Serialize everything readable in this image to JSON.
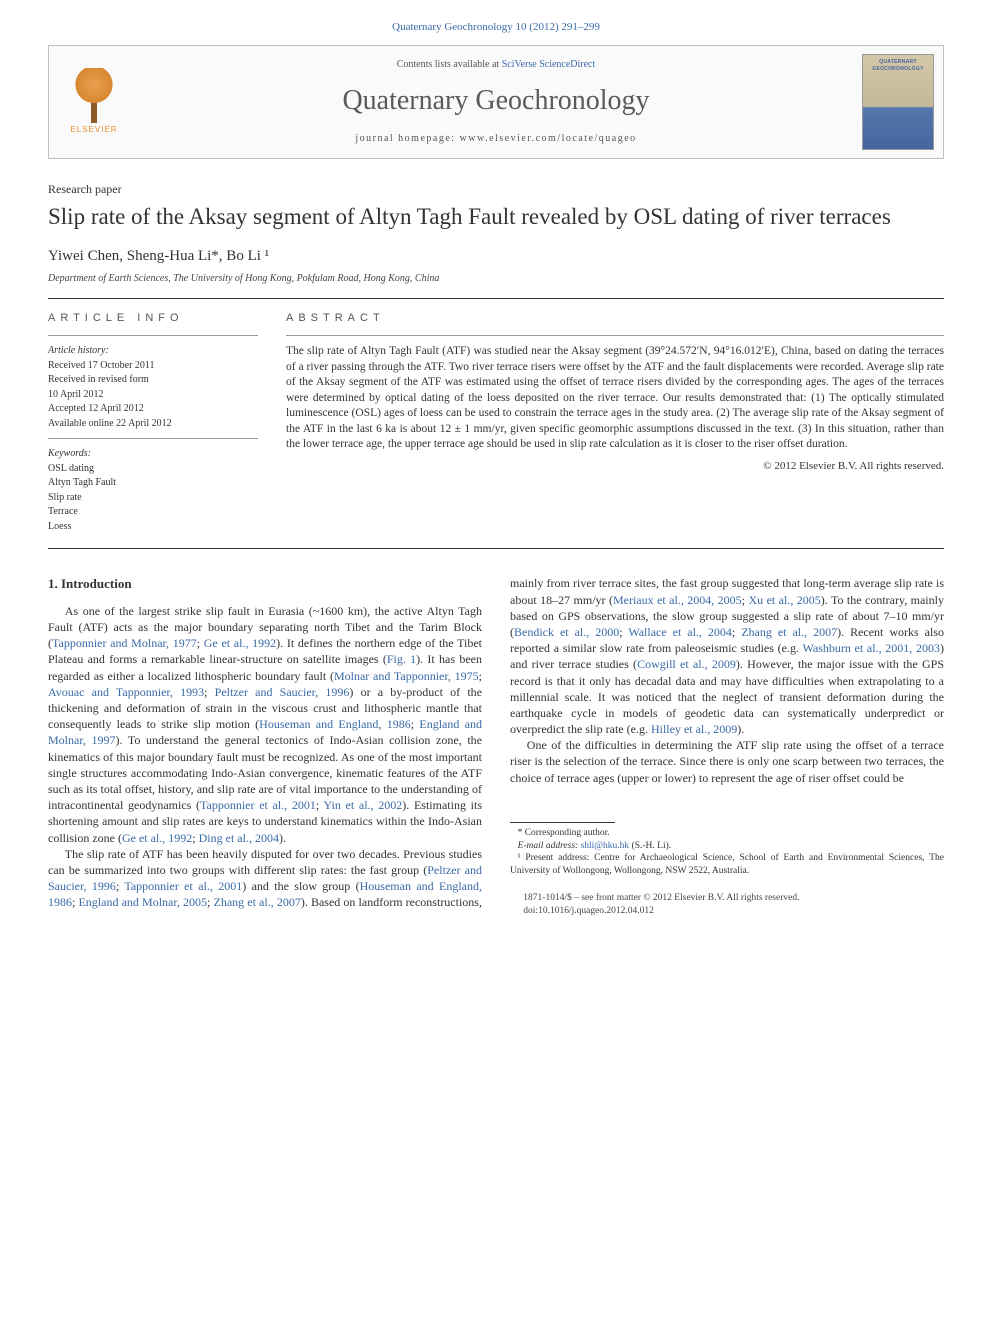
{
  "journal_ref": "Quaternary Geochronology 10 (2012) 291–299",
  "header": {
    "contents_prefix": "Contents lists available at ",
    "contents_link": "SciVerse ScienceDirect",
    "journal_name": "Quaternary Geochronology",
    "homepage_prefix": "journal homepage: ",
    "homepage_url": "www.elsevier.com/locate/quageo",
    "publisher_name": "ELSEVIER"
  },
  "paper_type": "Research paper",
  "title": "Slip rate of the Aksay segment of Altyn Tagh Fault revealed by OSL dating of river terraces",
  "authors": "Yiwei Chen, Sheng-Hua Li*, Bo Li ¹",
  "affiliation": "Department of Earth Sciences, The University of Hong Kong, Pokfulam Road, Hong Kong, China",
  "article_info": {
    "heading": "ARTICLE INFO",
    "history_label": "Article history:",
    "received": "Received 17 October 2011",
    "revised_1": "Received in revised form",
    "revised_2": "10 April 2012",
    "accepted": "Accepted 12 April 2012",
    "online": "Available online 22 April 2012",
    "keywords_label": "Keywords:",
    "kw1": "OSL dating",
    "kw2": "Altyn Tagh Fault",
    "kw3": "Slip rate",
    "kw4": "Terrace",
    "kw5": "Loess"
  },
  "abstract": {
    "heading": "ABSTRACT",
    "text": "The slip rate of Altyn Tagh Fault (ATF) was studied near the Aksay segment (39°24.572′N, 94°16.012′E), China, based on dating the terraces of a river passing through the ATF. Two river terrace risers were offset by the ATF and the fault displacements were recorded. Average slip rate of the Aksay segment of the ATF was estimated using the offset of terrace risers divided by the corresponding ages. The ages of the terraces were determined by optical dating of the loess deposited on the river terrace. Our results demonstrated that: (1) The optically stimulated luminescence (OSL) ages of loess can be used to constrain the terrace ages in the study area. (2) The average slip rate of the Aksay segment of the ATF in the last 6 ka is about 12 ± 1 mm/yr, given specific geomorphic assumptions discussed in the text. (3) In this situation, rather than the lower terrace age, the upper terrace age should be used in slip rate calculation as it is closer to the riser offset duration.",
    "copyright": "© 2012 Elsevier B.V. All rights reserved."
  },
  "body": {
    "section_heading": "1. Introduction",
    "p1_a": "As one of the largest strike slip fault in Eurasia (~1600 km), the active Altyn Tagh Fault (ATF) acts as the major boundary separating north Tibet and the Tarim Block (",
    "p1_ref1": "Tapponnier and Molnar, 1977",
    "p1_b": "; ",
    "p1_ref2": "Ge et al., 1992",
    "p1_c": "). It defines the northern edge of the Tibet Plateau and forms a remarkable linear-structure on satellite images (",
    "p1_ref3": "Fig. 1",
    "p1_d": "). It has been regarded as either a localized lithospheric boundary fault (",
    "p1_ref4": "Molnar and Tapponnier, 1975",
    "p1_e": "; ",
    "p1_ref5": "Avouac and Tapponnier, 1993",
    "p1_f": "; ",
    "p1_ref6": "Peltzer and Saucier, 1996",
    "p1_g": ") or a by-product of the thickening and deformation of strain in the viscous crust and lithospheric mantle that consequently leads to strike slip motion (",
    "p1_ref7": "Houseman and England, 1986",
    "p1_h": "; ",
    "p1_ref8": "England and Molnar, 1997",
    "p1_i": "). To understand the general tectonics of Indo-Asian collision zone, the kinematics of this major boundary fault must be recognized. As one of the most important single structures accommodating Indo-Asian convergence, kinematic features of the ATF such as its total offset, history, and slip rate are of vital importance to the understanding of intracontinental geodynamics (",
    "p1_ref9": "Tapponnier et al., 2001",
    "p1_j": "; ",
    "p1_ref10": "Yin et al., 2002",
    "p1_k": "). Estimating its shortening amount and slip rates are keys to understand kinematics within the Indo-Asian collision zone (",
    "p1_ref11": "Ge et al., 1992",
    "p1_l": "; ",
    "p1_ref12": "Ding et al., 2004",
    "p1_m": ").",
    "p2_a": "The slip rate of ATF has been heavily disputed for over two decades. Previous studies can be summarized into two groups with different slip rates: the fast group (",
    "p2_ref1": "Peltzer and Saucier, 1996",
    "p2_b": "; ",
    "p2_ref2": "Tapponnier et al., 2001",
    "p2_c": ") and the slow group (",
    "p2_ref3": "Houseman and England, 1986",
    "p2_d": "; ",
    "p2_ref4": "England and Molnar, 2005",
    "p2_e": "; ",
    "p2_ref5": "Zhang et al., 2007",
    "p2_f": "). Based on landform reconstructions, mainly from river terrace sites, the fast group suggested that long-term average slip rate is about 18–27 mm/yr (",
    "p2_ref6": "Meriaux et al., 2004, 2005",
    "p2_g": "; ",
    "p2_ref7": "Xu et al., 2005",
    "p2_h": "). To the contrary, mainly based on GPS observations, the slow group suggested a slip rate of about 7–10 mm/yr (",
    "p2_ref8": "Bendick et al., 2000",
    "p2_i": "; ",
    "p2_ref9": "Wallace et al., 2004",
    "p2_j": "; ",
    "p2_ref10": "Zhang et al., 2007",
    "p2_k": "). Recent works also reported a similar slow rate from paleoseismic studies (e.g. ",
    "p2_ref11": "Washburn et al., 2001, 2003",
    "p2_l": ") and river terrace studies (",
    "p2_ref12": "Cowgill et al., 2009",
    "p2_m": "). However, the major issue with the GPS record is that it only has decadal data and may have difficulties when extrapolating to a millennial scale. It was noticed that the neglect of transient deformation during the earthquake cycle in models of geodetic data can systematically underpredict or overpredict the slip rate (e.g. ",
    "p2_ref13": "Hilley et al., 2009",
    "p2_n": ").",
    "p3": "One of the difficulties in determining the ATF slip rate using the offset of a terrace riser is the selection of the terrace. Since there is only one scarp between two terraces, the choice of terrace ages (upper or lower) to represent the age of riser offset could be"
  },
  "footnotes": {
    "corr_label": "* Corresponding author.",
    "email_label": "E-mail address: ",
    "email": "shli@hku.hk",
    "email_suffix": " (S.-H. Li).",
    "note1": "¹ Present address: Centre for Archaeological Science, School of Earth and Environmental Sciences, The University of Wollongong, Wollongong, NSW 2522, Australia."
  },
  "footer": {
    "issn_line": "1871-1014/$ – see front matter © 2012 Elsevier B.V. All rights reserved.",
    "doi_line": "doi:10.1016/j.quageo.2012.04.012"
  },
  "colors": {
    "link": "#3a6aa8",
    "text": "#333333",
    "rule": "#333333",
    "border": "#bfbfbf"
  }
}
